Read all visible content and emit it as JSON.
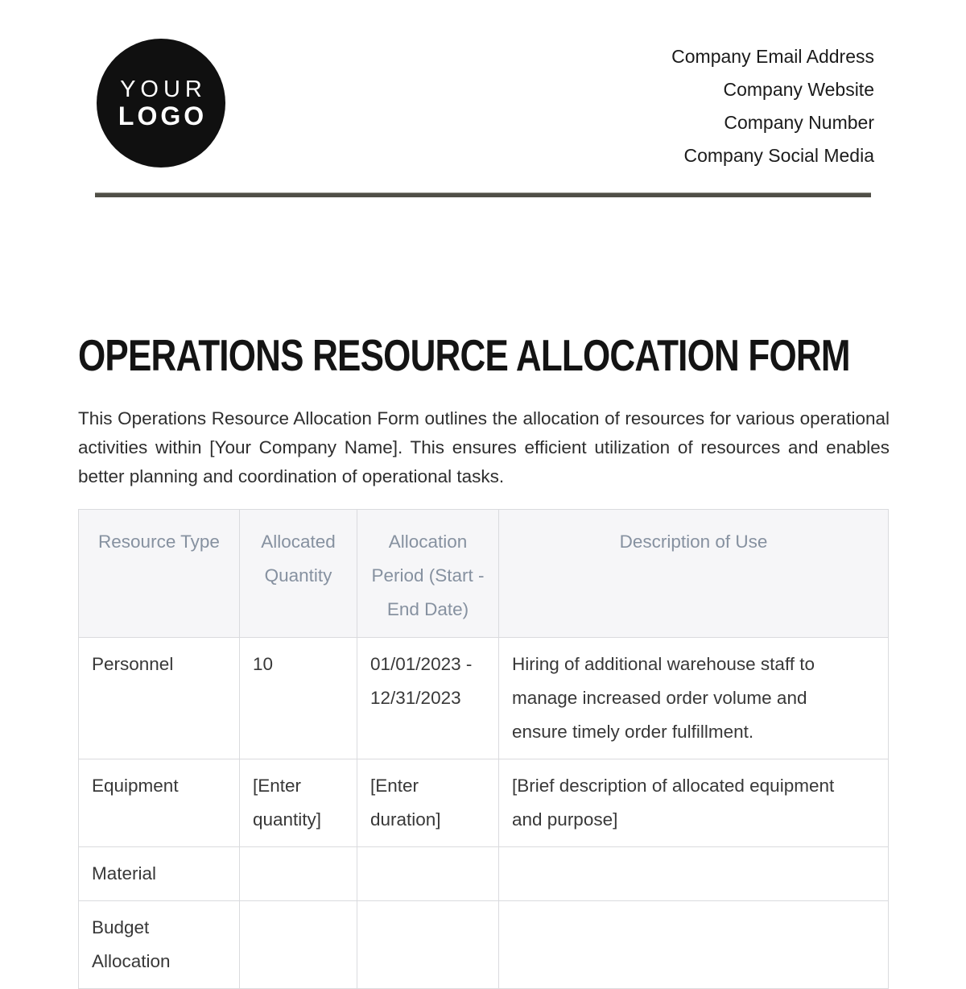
{
  "logo": {
    "line1": "YOUR",
    "line2": "LOGO"
  },
  "header": {
    "contact_lines": [
      "Company Email Address",
      "Company Website",
      "Company Number",
      "Company Social Media"
    ]
  },
  "title": "OPERATIONS RESOURCE ALLOCATION FORM",
  "intro": "This Operations Resource Allocation Form outlines the allocation of resources for various operational activities within [Your Company Name]. This ensures efficient utilization of resources and enables better planning and coordination of operational tasks.",
  "table": {
    "headers": [
      "Resource Type",
      "Allocated Quantity",
      "Allocation Period (Start - End Date)",
      "Description of Use"
    ],
    "rows": [
      [
        "Personnel",
        "10",
        "01/01/2023 - 12/31/2023",
        "Hiring of additional warehouse staff to manage increased order volume and ensure timely order fulfillment."
      ],
      [
        "Equipment",
        "[Enter quantity]",
        "[Enter duration]",
        "[Brief description of allocated equipment and purpose]"
      ],
      [
        "Material",
        "",
        "",
        ""
      ],
      [
        "Budget Allocation",
        "",
        "",
        ""
      ]
    ]
  },
  "colors": {
    "logo_background": "#101010",
    "divider": "#504f47",
    "table_header_background": "#f6f6f8",
    "table_header_text": "#8691a0",
    "table_border": "#dadbde",
    "body_text": "#383838"
  }
}
